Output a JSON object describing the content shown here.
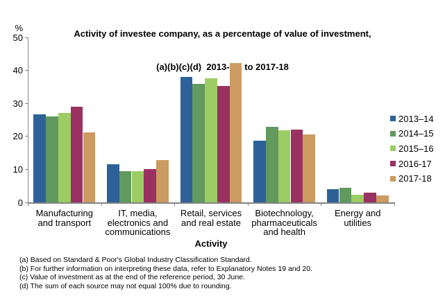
{
  "header": {
    "title_line1": "Activity of investee company, as a percentage of value of investment,",
    "title_line2": "(a)(b)(c)(d)  2013-14  to 2017-18"
  },
  "chart_data": {
    "type": "bar",
    "title": "Activity of investee company, as a percentage of value of investment, (a)(b)(c)(d) 2013-14 to 2017-18",
    "ylabel": "%",
    "xlabel": "Activity",
    "ylim": [
      0,
      50
    ],
    "yticks": [
      0,
      10,
      20,
      30,
      40,
      50
    ],
    "grid": false,
    "legend_position": "right",
    "categories": [
      "Manufacturing\nand transport",
      "IT, media,\nelectronics and\ncommunications",
      "Retail, services\nand real estate",
      "Biotechnology,\npharmaceuticals\nand health",
      "Energy and\nutilities"
    ],
    "series": [
      {
        "name": "2013–14",
        "color": "#2E6198",
        "values": [
          26.7,
          11.6,
          38.0,
          18.6,
          4.0
        ]
      },
      {
        "name": "2014–15",
        "color": "#61995F",
        "values": [
          26.0,
          9.5,
          35.9,
          23.0,
          4.4
        ]
      },
      {
        "name": "2015–16",
        "color": "#9CCC64",
        "values": [
          27.2,
          9.5,
          37.7,
          21.8,
          2.4
        ]
      },
      {
        "name": "2016-17",
        "color": "#993263",
        "values": [
          29.0,
          10.0,
          35.2,
          22.0,
          2.9
        ]
      },
      {
        "name": "2017-18",
        "color": "#CB9B62",
        "values": [
          21.3,
          12.9,
          42.3,
          20.5,
          2.1
        ]
      }
    ]
  },
  "footnotes": [
    "(a) Based on Standard & Poor's Global Industry Classification Standard.",
    "(b) For further information on interpreting these data, refer to Explanatory Notes 19 and 20.",
    "(c) Value of investment as at the end of the reference period, 30 June.",
    "(d) The sum of each source may not equal 100% due to rounding."
  ],
  "colors": {
    "axis": "#848484",
    "text": "#000000",
    "background": "#FFFFFF"
  }
}
